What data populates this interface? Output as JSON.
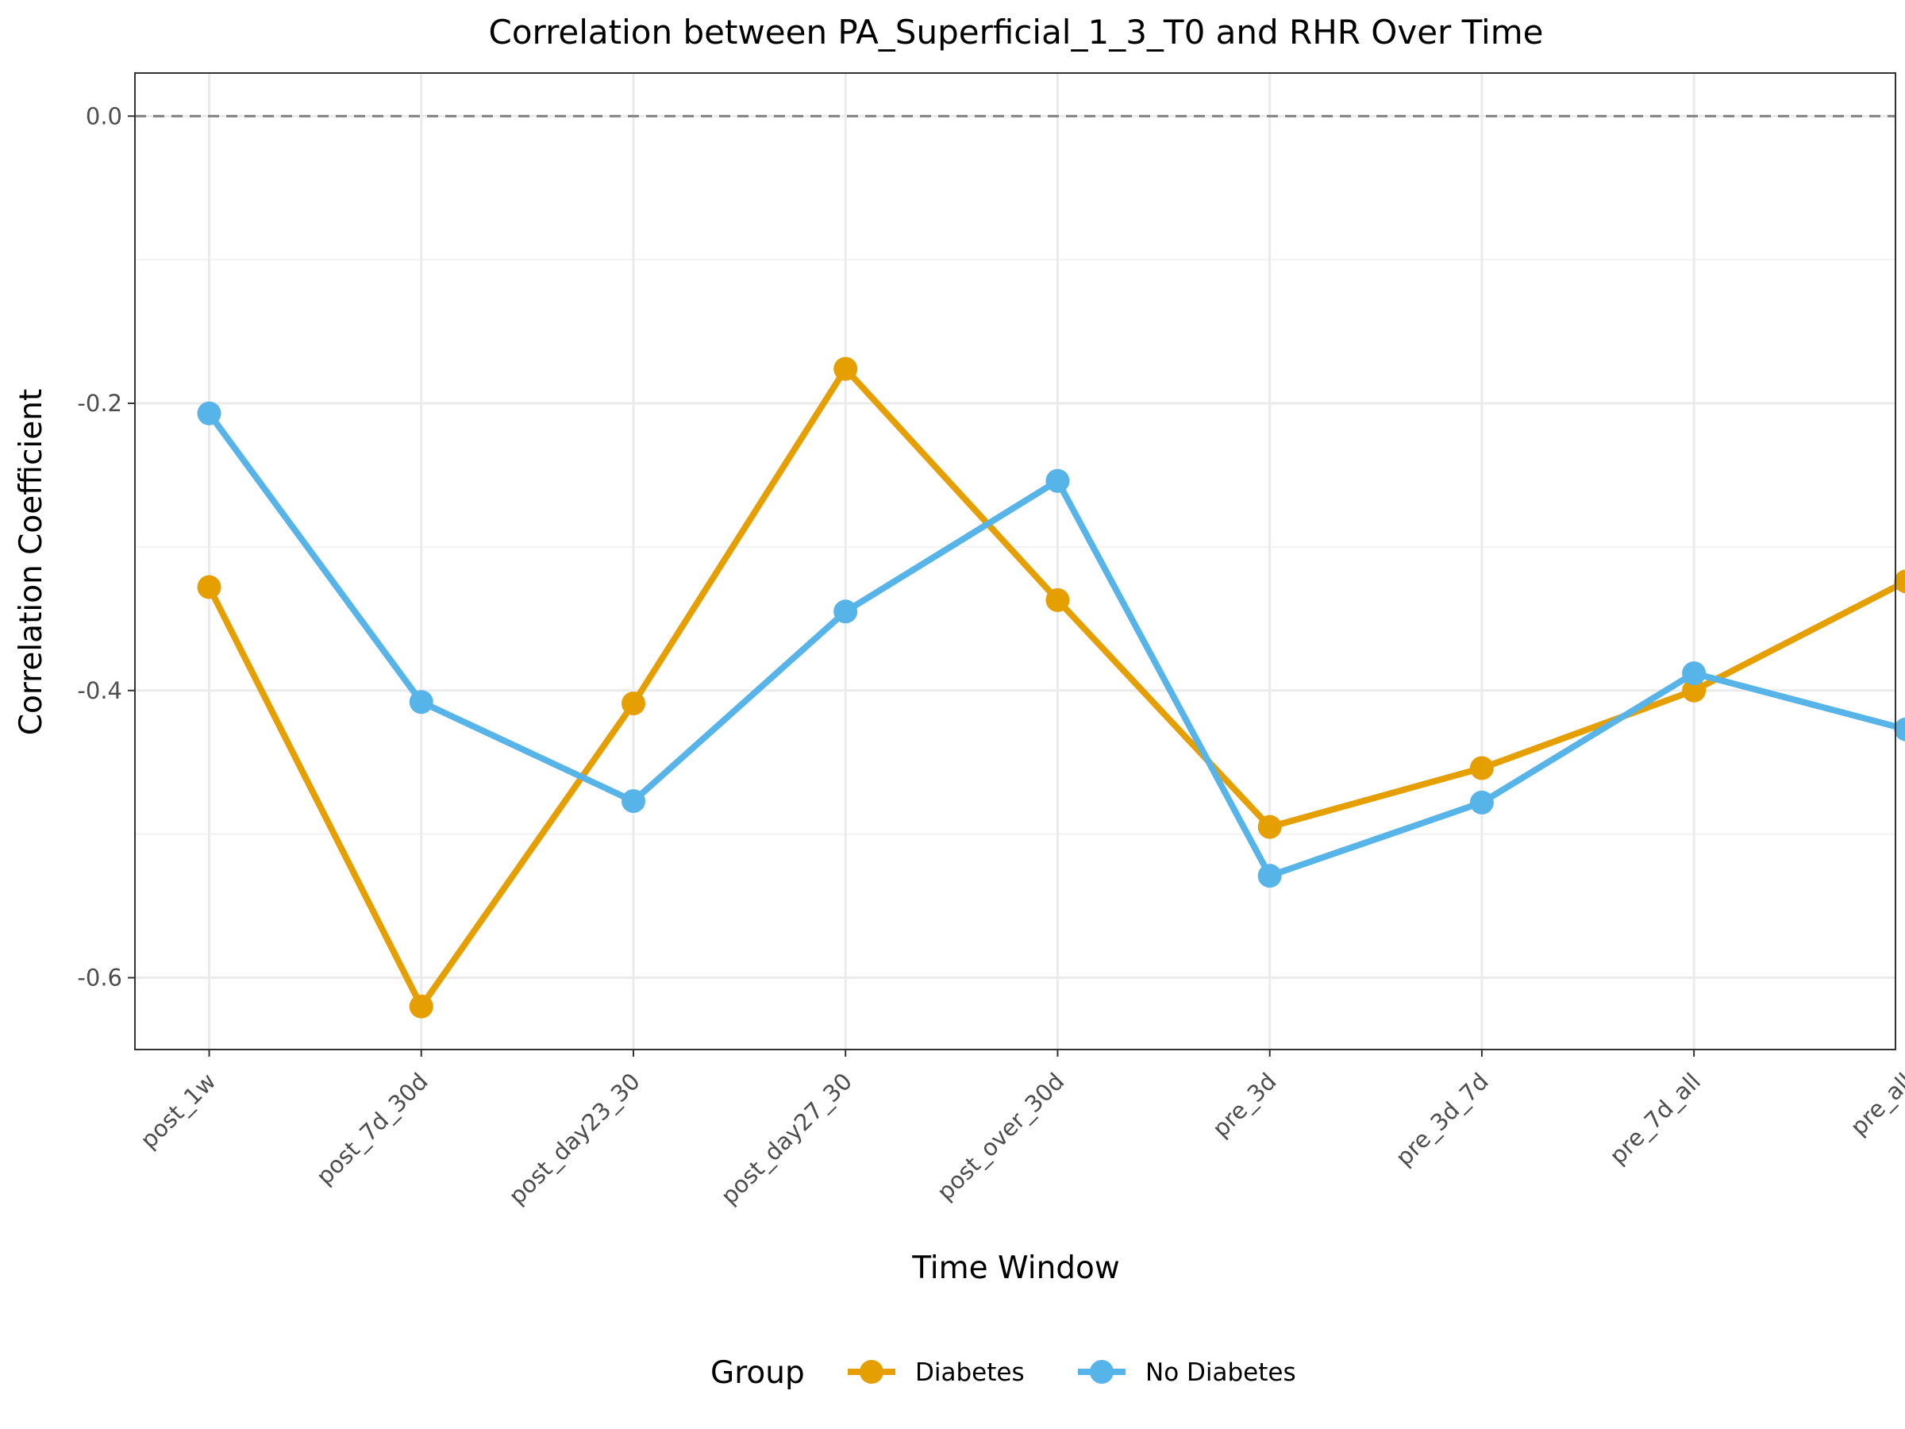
{
  "chart_data": {
    "type": "line",
    "title": "Correlation between PA_Superficial_1_3_T0 and RHR Over Time",
    "xlabel": "Time Window",
    "ylabel": "Correlation Coefficient",
    "categories": [
      "post_1w",
      "post_7d_30d",
      "post_day23_30",
      "post_day27_30",
      "post_over_30d",
      "pre_3d",
      "pre_3d_7d",
      "pre_7d_all",
      "pre_all"
    ],
    "ylim": [
      -0.65,
      0.03
    ],
    "yticks": [
      0.0,
      -0.2,
      -0.4,
      -0.6
    ],
    "ytick_labels": [
      "0.0",
      "-0.2",
      "-0.4",
      "-0.6"
    ],
    "reference_line": 0.0,
    "grid": true,
    "legend_title": "Group",
    "legend_position": "bottom",
    "series": [
      {
        "name": "Diabetes",
        "color": "#E69F00",
        "values": [
          -0.328,
          -0.62,
          -0.409,
          -0.176,
          -0.337,
          -0.495,
          -0.454,
          -0.4,
          -0.324
        ]
      },
      {
        "name": "No Diabetes",
        "color": "#56B4E9",
        "values": [
          -0.207,
          -0.408,
          -0.477,
          -0.345,
          -0.254,
          -0.529,
          -0.478,
          -0.388,
          -0.427
        ]
      }
    ]
  }
}
